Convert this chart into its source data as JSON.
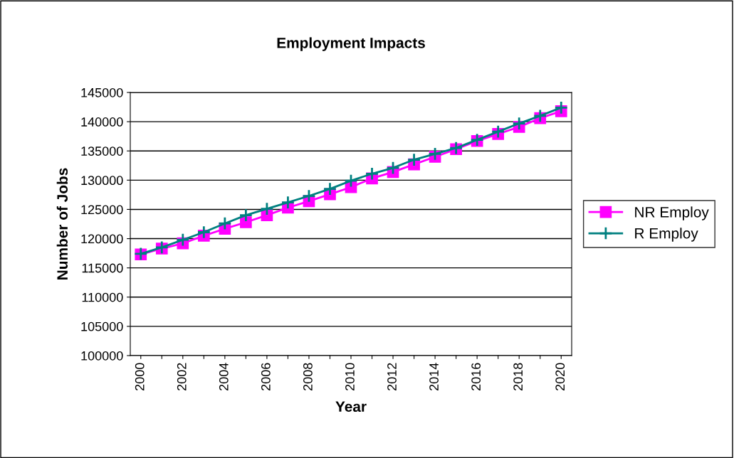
{
  "chart_data": {
    "type": "line",
    "title": "Employment Impacts",
    "xlabel": "Year",
    "ylabel": "Number of Jobs",
    "categories": [
      "2000",
      null,
      "2002",
      null,
      "2004",
      null,
      "2006",
      null,
      "2008",
      null,
      "2010",
      null,
      "2012",
      null,
      "2014",
      null,
      "2016",
      null,
      "2018",
      null,
      "2020"
    ],
    "series": [
      {
        "name": "NR Employ",
        "color": "#ff00ff",
        "marker": "square",
        "values": [
          117300,
          118300,
          119200,
          120500,
          121700,
          122800,
          124000,
          125300,
          126400,
          127600,
          128800,
          130300,
          131400,
          132700,
          134000,
          135300,
          136700,
          137900,
          139100,
          140600,
          141800
        ]
      },
      {
        "name": "R Employ",
        "color": "#008080",
        "marker": "cross",
        "values": [
          117400,
          118500,
          119800,
          121100,
          122600,
          124000,
          125100,
          126200,
          127300,
          128500,
          129900,
          131100,
          132100,
          133500,
          134500,
          135500,
          136900,
          138300,
          139700,
          141000,
          142400
        ]
      }
    ],
    "ylim": [
      100000,
      145000
    ],
    "yticks": [
      100000,
      105000,
      110000,
      115000,
      120000,
      125000,
      130000,
      135000,
      140000,
      145000
    ],
    "grid": "y",
    "legend": "right",
    "line_style": "solid"
  }
}
